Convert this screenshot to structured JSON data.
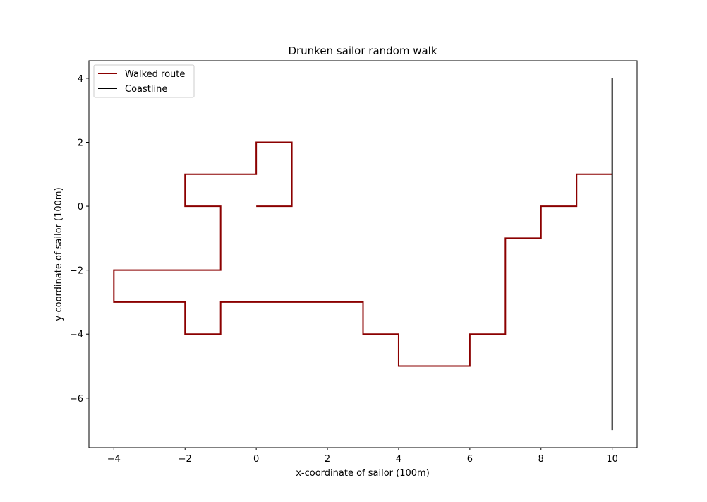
{
  "chart_data": {
    "type": "line",
    "title": "Drunken sailor random walk",
    "xlabel": "x-coordinate of sailor (100m)",
    "ylabel": "y-coordinate of sailor (100m)",
    "xlim": [
      -4.7,
      10.7
    ],
    "ylim": [
      -7.55,
      4.55
    ],
    "xticks": [
      -4,
      -2,
      0,
      2,
      4,
      6,
      8,
      10
    ],
    "yticks": [
      -6,
      -4,
      -2,
      0,
      2,
      4
    ],
    "grid": false,
    "legend_position": "top-left",
    "series": [
      {
        "name": "Walked route",
        "color": "#8b0000",
        "x": [
          0,
          1,
          1,
          0,
          0,
          -2,
          -2,
          -1,
          -1,
          -4,
          -4,
          -2,
          -2,
          -1,
          -1,
          3,
          3,
          4,
          4,
          6,
          6,
          7,
          7,
          8,
          8,
          9,
          9,
          10
        ],
        "y": [
          0,
          0,
          2,
          2,
          1,
          1,
          0,
          0,
          -2,
          -2,
          -3,
          -3,
          -4,
          -4,
          -3,
          -3,
          -4,
          -4,
          -5,
          -5,
          -4,
          -4,
          -1,
          -1,
          0,
          0,
          1,
          1
        ]
      },
      {
        "name": "Coastline",
        "color": "#000000",
        "x": [
          10,
          10
        ],
        "y": [
          -7,
          4
        ]
      }
    ]
  }
}
